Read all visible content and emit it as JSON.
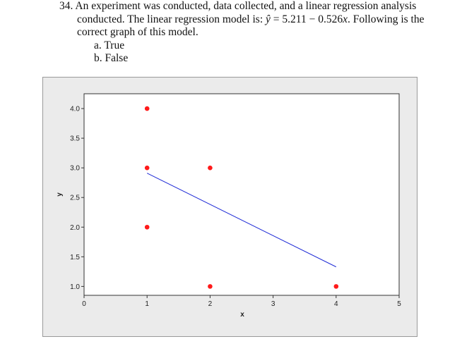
{
  "question": {
    "number": "34.",
    "line1": "An experiment was conducted, data collected, and a linear regression analysis",
    "line2_pre": "conducted.  The linear regression model is: ",
    "yhat": "ŷ",
    "eq": " = 5.211 − 0.526",
    "xvar": "x",
    "line2_post": ".  Following is the",
    "line3": "correct graph of this model.",
    "options": [
      {
        "letter": "a.",
        "text": "True"
      },
      {
        "letter": "b.",
        "text": "False"
      }
    ]
  },
  "chart_data": {
    "type": "scatter",
    "xlabel": "x",
    "ylabel": "y",
    "xlim": [
      0,
      5
    ],
    "ylim": [
      0.85,
      4.25
    ],
    "xticks": [
      "0",
      "1",
      "2",
      "3",
      "4",
      "5"
    ],
    "yticks": [
      "1.0",
      "1.5",
      "2.0",
      "2.5",
      "3.0",
      "3.5",
      "4.0"
    ],
    "points": [
      {
        "x": 1,
        "y": 4
      },
      {
        "x": 1,
        "y": 3
      },
      {
        "x": 1,
        "y": 2
      },
      {
        "x": 2,
        "y": 3
      },
      {
        "x": 2,
        "y": 1
      },
      {
        "x": 4,
        "y": 1
      }
    ],
    "fit_line": {
      "x": [
        1,
        4
      ],
      "y": [
        2.91,
        1.33
      ]
    },
    "point_color": "#ff1a1a",
    "line_color": "#1f2bd6",
    "grid": false
  }
}
